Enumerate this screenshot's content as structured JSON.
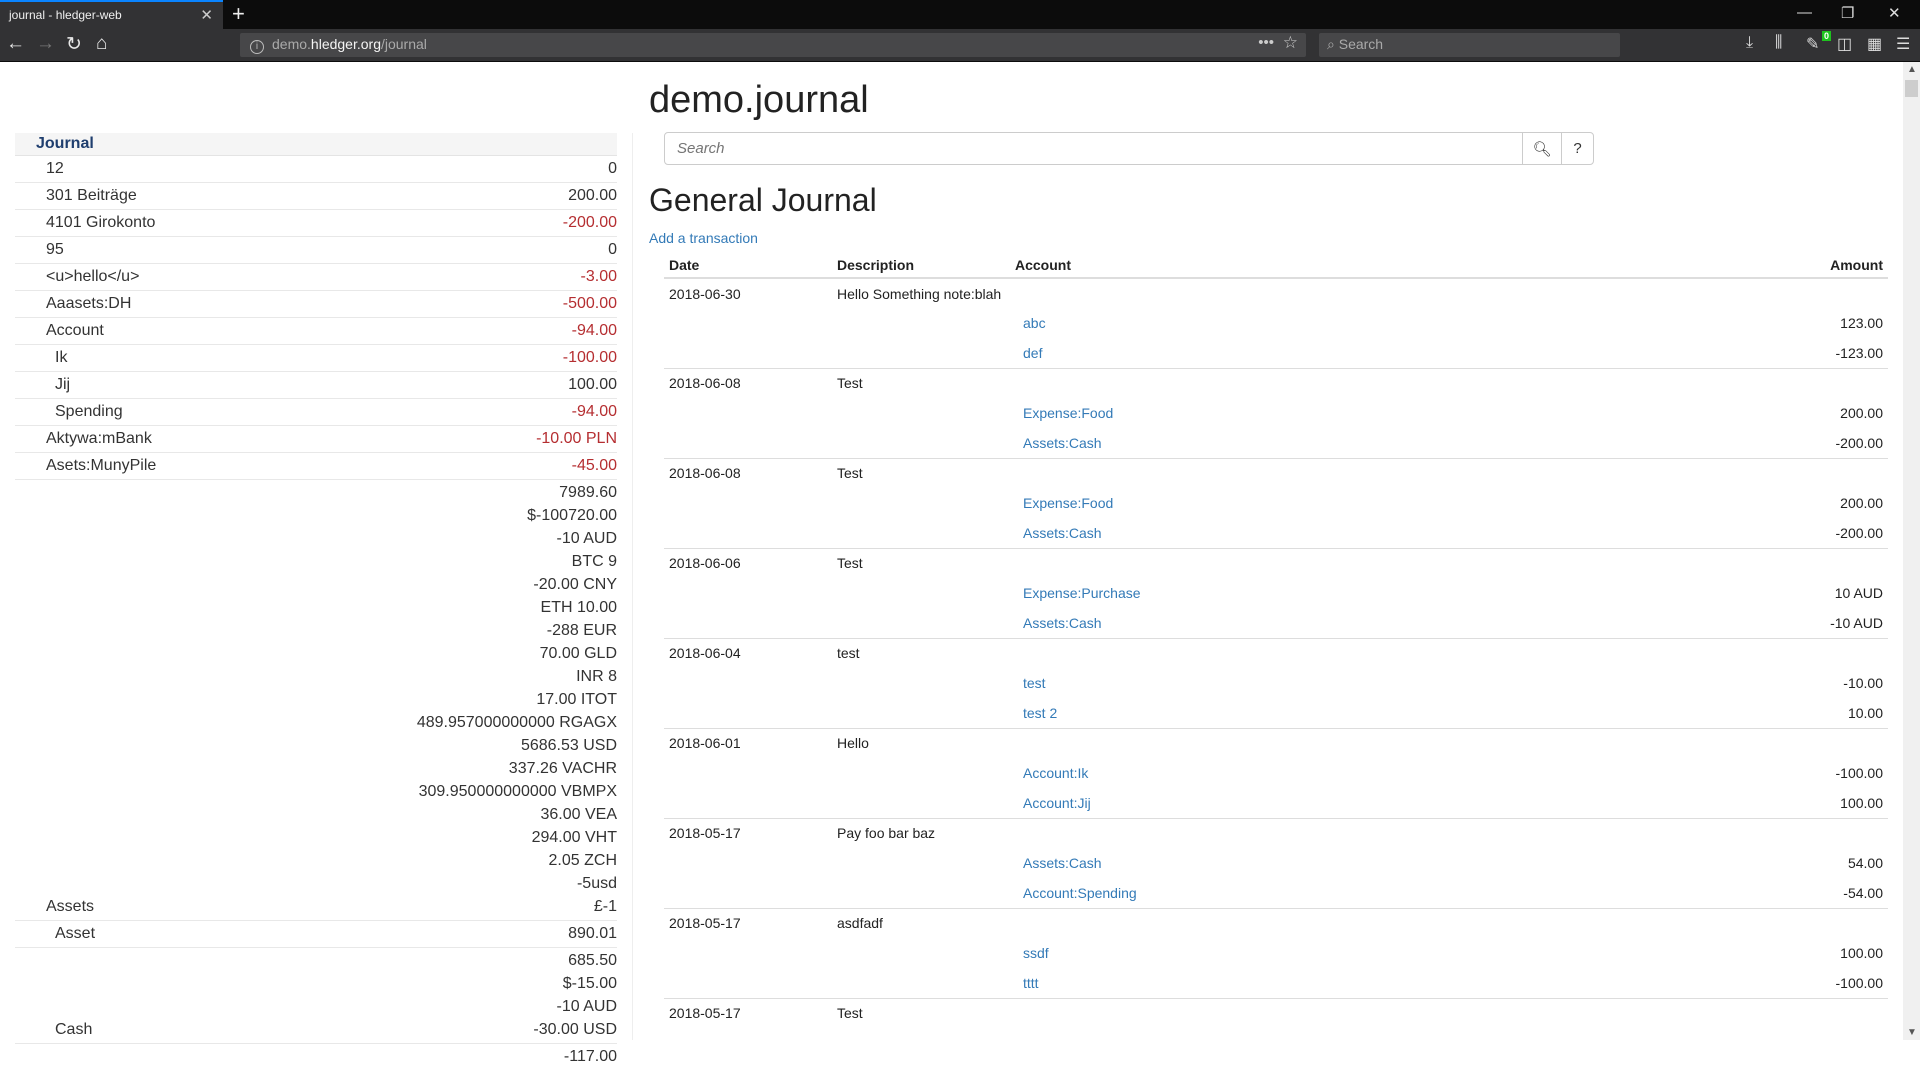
{
  "browser": {
    "tab_title": "journal - hledger-web",
    "url_host_prefix": "demo.",
    "url_host": "hledger.org",
    "url_path": "/journal",
    "search_placeholder": "Search",
    "badge_count": "0"
  },
  "sidebar": {
    "header": "Journal",
    "rows": [
      {
        "name": "12",
        "indent": 1,
        "amounts": [
          {
            "v": "0",
            "neg": false
          }
        ]
      },
      {
        "name": "301 Beiträge",
        "indent": 1,
        "amounts": [
          {
            "v": "200.00",
            "neg": false
          }
        ]
      },
      {
        "name": "4101 Girokonto",
        "indent": 1,
        "amounts": [
          {
            "v": "-200.00",
            "neg": true
          }
        ]
      },
      {
        "name": "95",
        "indent": 1,
        "amounts": [
          {
            "v": "0",
            "neg": false
          }
        ]
      },
      {
        "name": "<u>hello</u>",
        "indent": 1,
        "amounts": [
          {
            "v": "-3.00",
            "neg": true
          }
        ]
      },
      {
        "name": "Aaasets:DH",
        "indent": 1,
        "amounts": [
          {
            "v": "-500.00",
            "neg": true
          }
        ]
      },
      {
        "name": "Account",
        "indent": 1,
        "amounts": [
          {
            "v": "-94.00",
            "neg": true
          }
        ]
      },
      {
        "name": "Ik",
        "indent": 2,
        "amounts": [
          {
            "v": "-100.00",
            "neg": true
          }
        ]
      },
      {
        "name": "Jij",
        "indent": 2,
        "amounts": [
          {
            "v": "100.00",
            "neg": false
          }
        ]
      },
      {
        "name": "Spending",
        "indent": 2,
        "amounts": [
          {
            "v": "-94.00",
            "neg": true
          }
        ]
      },
      {
        "name": "Aktywa:mBank",
        "indent": 1,
        "amounts": [
          {
            "v": "-10.00 PLN",
            "neg": true
          }
        ]
      },
      {
        "name": "Asets:MunyPile",
        "indent": 1,
        "amounts": [
          {
            "v": "-45.00",
            "neg": true
          }
        ]
      },
      {
        "name": "Assets",
        "indent": 1,
        "amounts": [
          {
            "v": "7989.60",
            "neg": false
          },
          {
            "v": "$-100720.00",
            "neg": false
          },
          {
            "v": "-10 AUD",
            "neg": false
          },
          {
            "v": "BTC 9",
            "neg": false
          },
          {
            "v": "-20.00 CNY",
            "neg": false
          },
          {
            "v": "ETH 10.00",
            "neg": false
          },
          {
            "v": "-288 EUR",
            "neg": false
          },
          {
            "v": "70.00 GLD",
            "neg": false
          },
          {
            "v": "INR 8",
            "neg": false
          },
          {
            "v": "17.00 ITOT",
            "neg": false
          },
          {
            "v": "489.957000000000 RGAGX",
            "neg": false
          },
          {
            "v": "5686.53 USD",
            "neg": false
          },
          {
            "v": "337.26 VACHR",
            "neg": false
          },
          {
            "v": "309.950000000000 VBMPX",
            "neg": false
          },
          {
            "v": "36.00 VEA",
            "neg": false
          },
          {
            "v": "294.00 VHT",
            "neg": false
          },
          {
            "v": "2.05 ZCH",
            "neg": false
          },
          {
            "v": "-5usd",
            "neg": false
          },
          {
            "v": "£-1",
            "neg": false
          }
        ]
      },
      {
        "name": "Asset",
        "indent": 2,
        "amounts": [
          {
            "v": "890.01",
            "neg": false
          }
        ]
      },
      {
        "name": "Cash",
        "indent": 2,
        "amounts": [
          {
            "v": "685.50",
            "neg": false
          },
          {
            "v": "$-15.00",
            "neg": false
          },
          {
            "v": "-10 AUD",
            "neg": false
          },
          {
            "v": "-30.00 USD",
            "neg": false
          }
        ]
      },
      {
        "name": "",
        "indent": 2,
        "amounts": [
          {
            "v": "-117.00",
            "neg": false
          }
        ]
      }
    ]
  },
  "main": {
    "title": "demo.journal",
    "search_placeholder": "Search",
    "help_label": "?",
    "subtitle": "General Journal",
    "add_transaction": "Add a transaction",
    "columns": {
      "date": "Date",
      "description": "Description",
      "account": "Account",
      "amount": "Amount"
    },
    "transactions": [
      {
        "date": "2018-06-30",
        "description": "Hello Something note:blah",
        "postings": [
          {
            "account": "abc",
            "amount": "123.00",
            "neg": false
          },
          {
            "account": "def",
            "amount": "-123.00",
            "neg": true
          }
        ]
      },
      {
        "date": "2018-06-08",
        "description": "Test",
        "postings": [
          {
            "account": "Expense:Food",
            "amount": "200.00",
            "neg": false
          },
          {
            "account": "Assets:Cash",
            "amount": "-200.00",
            "neg": true
          }
        ]
      },
      {
        "date": "2018-06-08",
        "description": "Test",
        "postings": [
          {
            "account": "Expense:Food",
            "amount": "200.00",
            "neg": false
          },
          {
            "account": "Assets:Cash",
            "amount": "-200.00",
            "neg": true
          }
        ]
      },
      {
        "date": "2018-06-06",
        "description": "Test",
        "postings": [
          {
            "account": "Expense:Purchase",
            "amount": "10 AUD",
            "neg": false
          },
          {
            "account": "Assets:Cash",
            "amount": "-10 AUD",
            "neg": true
          }
        ]
      },
      {
        "date": "2018-06-04",
        "description": "test",
        "postings": [
          {
            "account": "test",
            "amount": "-10.00",
            "neg": true
          },
          {
            "account": "test 2",
            "amount": "10.00",
            "neg": false
          }
        ]
      },
      {
        "date": "2018-06-01",
        "description": "Hello",
        "postings": [
          {
            "account": "Account:Ik",
            "amount": "-100.00",
            "neg": true
          },
          {
            "account": "Account:Jij",
            "amount": "100.00",
            "neg": false
          }
        ]
      },
      {
        "date": "2018-05-17",
        "description": "Pay foo bar baz",
        "postings": [
          {
            "account": "Assets:Cash",
            "amount": "54.00",
            "neg": false
          },
          {
            "account": "Account:Spending",
            "amount": "-54.00",
            "neg": true
          }
        ]
      },
      {
        "date": "2018-05-17",
        "description": "asdfadf",
        "postings": [
          {
            "account": "ssdf",
            "amount": "100.00",
            "neg": false
          },
          {
            "account": "tttt",
            "amount": "-100.00",
            "neg": true
          }
        ]
      },
      {
        "date": "2018-05-17",
        "description": "Test",
        "postings": []
      }
    ]
  },
  "colors": {
    "link": "#337ab7",
    "negative": "#b52e31",
    "tab_accent": "#0a84ff",
    "sidebar_header": "#1f3e6e"
  }
}
